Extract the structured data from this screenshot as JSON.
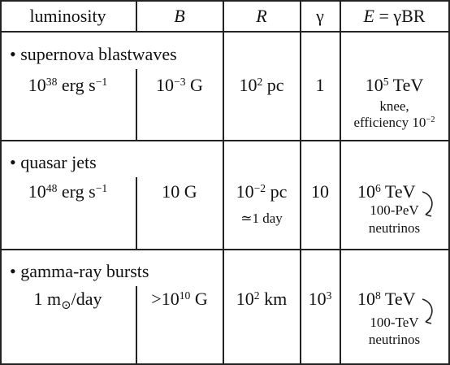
{
  "header": {
    "luminosity": "luminosity",
    "B": "B",
    "R": "R",
    "gamma": "γ",
    "E_lhs": "E",
    "E_rhs": "= γBR"
  },
  "rows": [
    {
      "title": "• supernova blastwaves",
      "lum_base": "10",
      "lum_exp": "38",
      "lum_unit": "erg s",
      "lum_unit_exp": "−1",
      "B_base": "10",
      "B_exp": "−3",
      "B_unit": "G",
      "R_base": "10",
      "R_exp": "2",
      "R_unit": "pc",
      "gamma": "1",
      "E_base": "10",
      "E_exp": "5",
      "E_unit": "TeV",
      "note1": "knee,",
      "note2": "efficiency 10",
      "note2_exp": "−2"
    },
    {
      "title": "• quasar jets",
      "lum_base": "10",
      "lum_exp": "48",
      "lum_unit": "erg s",
      "lum_unit_exp": "−1",
      "B_value": "10 G",
      "R_base": "10",
      "R_exp": "−2",
      "R_unit": "pc",
      "R_note": "≃1 day",
      "gamma": "10",
      "E_base": "10",
      "E_exp": "6",
      "E_unit": "TeV",
      "note1": "100-PeV",
      "note2": "neutrinos"
    },
    {
      "title": "• gamma-ray bursts",
      "lum_value": "1 m",
      "lum_sun": "⊙",
      "lum_unit": "/day",
      "B_prefix": ">10",
      "B_exp": "10",
      "B_unit": "G",
      "R_base": "10",
      "R_exp": "2",
      "R_unit": "km",
      "gamma_base": "10",
      "gamma_exp": "3",
      "E_base": "10",
      "E_exp": "8",
      "E_unit": "TeV",
      "note1": "100-TeV",
      "note2": "neutrinos"
    }
  ]
}
